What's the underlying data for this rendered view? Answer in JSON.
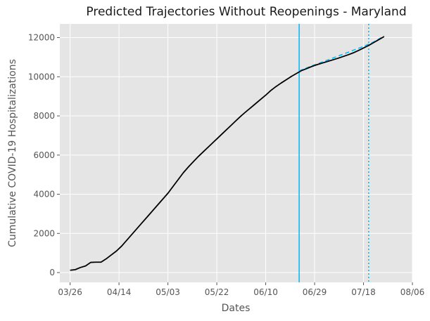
{
  "chart_data": {
    "type": "line",
    "title": "Predicted Trajectories Without Reopenings - Maryland",
    "xlabel": "Dates",
    "ylabel": "Cumulative COVID-19 Hospitalizations",
    "xlim": [
      "2020-03-22",
      "2020-08-06"
    ],
    "ylim": [
      -500,
      12700
    ],
    "x_ticks": [
      "03/26",
      "04/14",
      "05/03",
      "05/22",
      "06/10",
      "06/29",
      "07/18",
      "08/06"
    ],
    "x_tick_dates": [
      "2020-03-26",
      "2020-04-14",
      "2020-05-03",
      "2020-05-22",
      "2020-06-10",
      "2020-06-29",
      "2020-07-18",
      "2020-08-06"
    ],
    "y_ticks": [
      0,
      2000,
      4000,
      6000,
      8000,
      10000,
      12000
    ],
    "grid": true,
    "background": "#e5e5e5",
    "series": [
      {
        "style": "solid",
        "color": "#000000",
        "points": [
          [
            "2020-03-26",
            120
          ],
          [
            "2020-03-28",
            150
          ],
          [
            "2020-03-30",
            260
          ],
          [
            "2020-04-01",
            340
          ],
          [
            "2020-04-03",
            520
          ],
          [
            "2020-04-05",
            530
          ],
          [
            "2020-04-07",
            530
          ],
          [
            "2020-04-09",
            700
          ],
          [
            "2020-04-11",
            900
          ],
          [
            "2020-04-13",
            1100
          ],
          [
            "2020-04-15",
            1350
          ],
          [
            "2020-04-17",
            1650
          ],
          [
            "2020-04-19",
            1950
          ],
          [
            "2020-04-21",
            2250
          ],
          [
            "2020-04-23",
            2550
          ],
          [
            "2020-04-25",
            2850
          ],
          [
            "2020-04-27",
            3150
          ],
          [
            "2020-04-29",
            3450
          ],
          [
            "2020-05-01",
            3750
          ],
          [
            "2020-05-03",
            4050
          ],
          [
            "2020-05-05",
            4400
          ],
          [
            "2020-05-07",
            4750
          ],
          [
            "2020-05-09",
            5100
          ],
          [
            "2020-05-11",
            5400
          ],
          [
            "2020-05-13",
            5680
          ],
          [
            "2020-05-15",
            5950
          ],
          [
            "2020-05-17",
            6200
          ],
          [
            "2020-05-19",
            6450
          ],
          [
            "2020-05-21",
            6700
          ],
          [
            "2020-05-23",
            6950
          ],
          [
            "2020-05-25",
            7200
          ],
          [
            "2020-05-27",
            7450
          ],
          [
            "2020-05-29",
            7700
          ],
          [
            "2020-05-31",
            7950
          ],
          [
            "2020-06-02",
            8180
          ],
          [
            "2020-06-04",
            8400
          ],
          [
            "2020-06-06",
            8620
          ],
          [
            "2020-06-08",
            8840
          ],
          [
            "2020-06-10",
            9060
          ],
          [
            "2020-06-12",
            9300
          ],
          [
            "2020-06-14",
            9500
          ],
          [
            "2020-06-16",
            9680
          ],
          [
            "2020-06-18",
            9850
          ],
          [
            "2020-06-20",
            10020
          ],
          [
            "2020-06-22",
            10170
          ],
          [
            "2020-06-24",
            10320
          ],
          [
            "2020-06-26",
            10420
          ],
          [
            "2020-06-28",
            10530
          ],
          [
            "2020-06-30",
            10620
          ],
          [
            "2020-07-02",
            10700
          ],
          [
            "2020-07-04",
            10780
          ],
          [
            "2020-07-06",
            10860
          ],
          [
            "2020-07-08",
            10940
          ],
          [
            "2020-07-10",
            11030
          ],
          [
            "2020-07-12",
            11120
          ],
          [
            "2020-07-14",
            11220
          ],
          [
            "2020-07-16",
            11340
          ],
          [
            "2020-07-18",
            11470
          ],
          [
            "2020-07-20",
            11600
          ],
          [
            "2020-07-22",
            11750
          ],
          [
            "2020-07-24",
            11900
          ],
          [
            "2020-07-26",
            12050
          ]
        ]
      },
      {
        "style": "dashed",
        "color": "#00bfff",
        "points": [
          [
            "2020-06-23",
            10300
          ],
          [
            "2020-06-28",
            10560
          ],
          [
            "2020-07-03",
            10800
          ],
          [
            "2020-07-08",
            11050
          ],
          [
            "2020-07-13",
            11300
          ],
          [
            "2020-07-18",
            11550
          ],
          [
            "2020-07-22",
            11780
          ],
          [
            "2020-07-26",
            12080
          ]
        ]
      }
    ],
    "vlines": [
      {
        "date": "2020-06-23",
        "style": "solid",
        "color": "#00bfff"
      },
      {
        "date": "2020-07-20",
        "style": "dotted",
        "color": "#00bfff"
      }
    ]
  }
}
